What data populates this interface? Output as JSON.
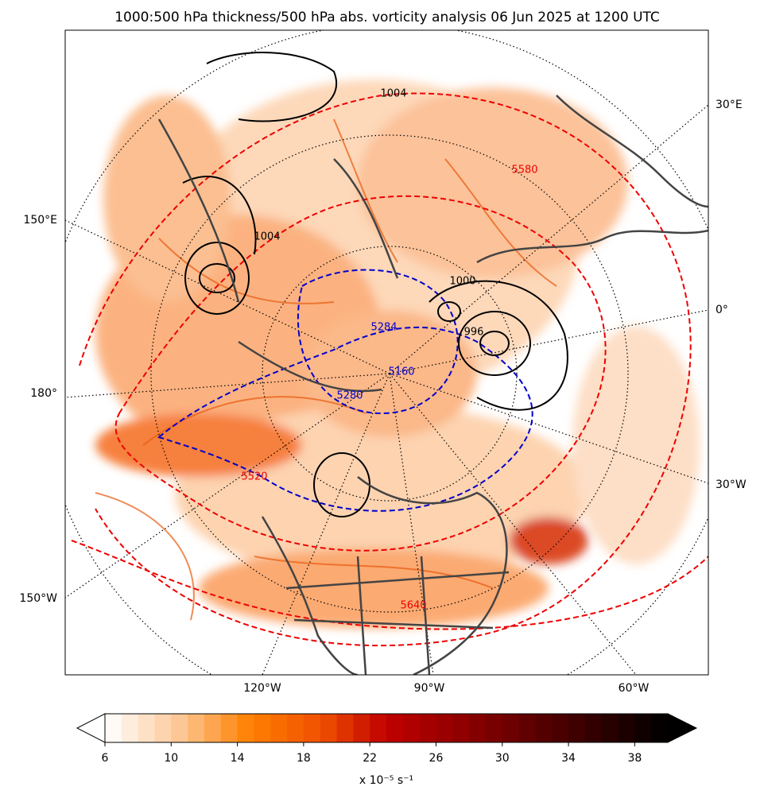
{
  "title": "1000:500 hPa thickness/500 hPa abs. vorticity analysis 06 Jun 2025 at 1200 UTC",
  "map_labels": {
    "right": [
      "30°E",
      "0°",
      "30°W"
    ],
    "left": [
      "150°E",
      "180°",
      "150°W"
    ],
    "bottom": [
      "120°W",
      "90°W",
      "60°W"
    ]
  },
  "contour_labels": {
    "thickness_blue": [
      "5284",
      "5280",
      "5160"
    ],
    "thickness_red": [
      "5520",
      "5640",
      "5580"
    ],
    "pressure": [
      "1004",
      "1000",
      "996",
      "1004"
    ]
  },
  "colorbar": {
    "range": [
      6,
      40
    ],
    "step": 1,
    "ticks": [
      6,
      10,
      14,
      18,
      22,
      26,
      30,
      34,
      38
    ],
    "label": "x 10⁻⁵ s⁻¹"
  }
}
